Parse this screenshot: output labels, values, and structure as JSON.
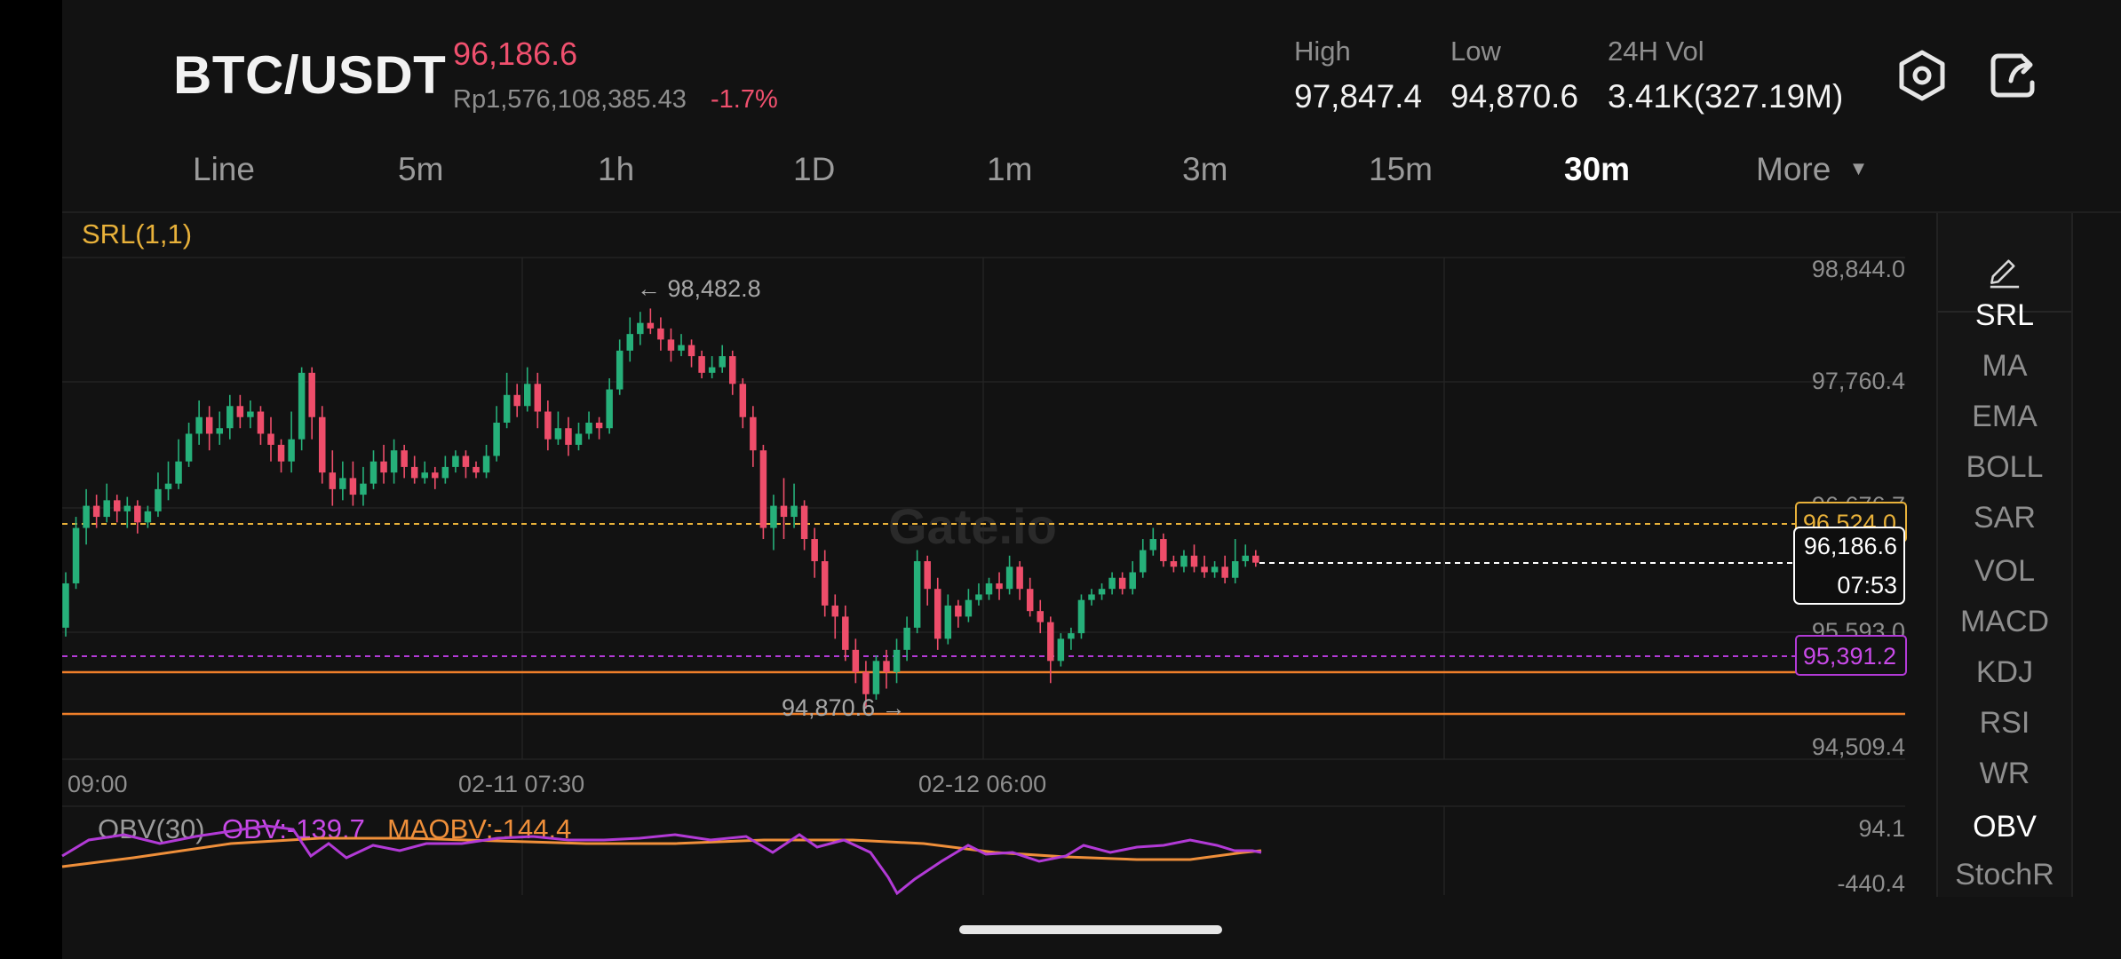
{
  "header": {
    "pair": "BTC/USDT",
    "last_price": "96,186.6",
    "local_price": "Rp1,576,108,385.43",
    "change": "-1.7%",
    "stats": [
      {
        "label": "High",
        "value": "97,847.4"
      },
      {
        "label": "Low",
        "value": "94,870.6"
      },
      {
        "label": "24H Vol",
        "value": "3.41K(327.19M)"
      }
    ],
    "icons": [
      "settings-hex-icon",
      "share-icon"
    ]
  },
  "tabs": [
    {
      "label": "Line",
      "active": false
    },
    {
      "label": "5m",
      "active": false
    },
    {
      "label": "1h",
      "active": false
    },
    {
      "label": "1D",
      "active": false
    },
    {
      "label": "1m",
      "active": false
    },
    {
      "label": "3m",
      "active": false
    },
    {
      "label": "15m",
      "active": false
    },
    {
      "label": "30m",
      "active": true
    },
    {
      "label": "More",
      "active": false
    }
  ],
  "chart": {
    "indicator_label": "SRL(1,1)",
    "watermark": "Gate.io",
    "y_ticks": [
      "98,844.0",
      "97,760.4",
      "96,676.7",
      "95,593.0",
      "94,509.4"
    ],
    "x_ticks": [
      "09:00",
      "02-11 07:30",
      "02-12 06:00"
    ],
    "max_marker": "← 98,482.8",
    "min_marker": "94,870.6 →",
    "current_price": "96,186.6",
    "countdown": "07:53",
    "srl_upper": "96,524.0",
    "srl_lower": "95,391.2",
    "colors": {
      "up": "#26b07a",
      "down": "#ee4d6a",
      "srl_upper": "#e8b13a",
      "srl_lower": "#b23ad6",
      "support": "#ef7f2a"
    }
  },
  "chart_data": {
    "type": "candlestick",
    "timeframe": "30m",
    "ylim": [
      94509.4,
      98844.0
    ],
    "x_ticks": [
      "09:00",
      "02-11 07:30",
      "02-12 06:00"
    ],
    "high_marker": 98482.8,
    "low_marker": 94870.6,
    "current": 96186.6,
    "srl": {
      "upper": 96524.0,
      "lower": 95391.2
    },
    "candles": [
      [
        95600,
        96000,
        95520,
        96100
      ],
      [
        96000,
        96500,
        95950,
        96600
      ],
      [
        96500,
        96700,
        96350,
        96850
      ],
      [
        96700,
        96600,
        96500,
        96800
      ],
      [
        96600,
        96750,
        96550,
        96900
      ],
      [
        96750,
        96650,
        96550,
        96800
      ],
      [
        96650,
        96700,
        96500,
        96780
      ],
      [
        96700,
        96550,
        96450,
        96750
      ],
      [
        96550,
        96650,
        96500,
        96700
      ],
      [
        96650,
        96850,
        96600,
        97000
      ],
      [
        96850,
        96900,
        96750,
        97100
      ],
      [
        96900,
        97100,
        96850,
        97300
      ],
      [
        97100,
        97350,
        97050,
        97450
      ],
      [
        97350,
        97500,
        97250,
        97650
      ],
      [
        97500,
        97350,
        97200,
        97600
      ],
      [
        97350,
        97400,
        97250,
        97550
      ],
      [
        97400,
        97600,
        97300,
        97700
      ],
      [
        97600,
        97500,
        97400,
        97700
      ],
      [
        97500,
        97550,
        97400,
        97650
      ],
      [
        97550,
        97350,
        97250,
        97600
      ],
      [
        97350,
        97250,
        97100,
        97500
      ],
      [
        97250,
        97100,
        97000,
        97300
      ],
      [
        97100,
        97300,
        97000,
        97550
      ],
      [
        97300,
        97900,
        97200,
        97950
      ],
      [
        97900,
        97500,
        97300,
        97950
      ],
      [
        97500,
        97000,
        96900,
        97600
      ],
      [
        97000,
        96850,
        96700,
        97200
      ],
      [
        96850,
        96950,
        96750,
        97100
      ],
      [
        96950,
        96800,
        96700,
        97100
      ],
      [
        96800,
        96900,
        96700,
        97050
      ],
      [
        96900,
        97100,
        96850,
        97200
      ],
      [
        97100,
        97000,
        96900,
        97250
      ],
      [
        97000,
        97200,
        96900,
        97300
      ],
      [
        97200,
        97050,
        96950,
        97250
      ],
      [
        97050,
        96950,
        96900,
        97150
      ],
      [
        96950,
        97000,
        96900,
        97100
      ],
      [
        97000,
        96950,
        96850,
        97050
      ],
      [
        96950,
        97050,
        96900,
        97150
      ],
      [
        97050,
        97150,
        97000,
        97200
      ],
      [
        97150,
        97050,
        96950,
        97200
      ],
      [
        97050,
        97000,
        96950,
        97100
      ],
      [
        97000,
        97150,
        96950,
        97250
      ],
      [
        97150,
        97450,
        97100,
        97600
      ],
      [
        97450,
        97700,
        97400,
        97900
      ],
      [
        97700,
        97600,
        97500,
        97800
      ],
      [
        97600,
        97800,
        97550,
        97950
      ],
      [
        97800,
        97550,
        97400,
        97900
      ],
      [
        97550,
        97300,
        97200,
        97650
      ],
      [
        97300,
        97400,
        97250,
        97550
      ],
      [
        97400,
        97250,
        97150,
        97500
      ],
      [
        97250,
        97350,
        97200,
        97450
      ],
      [
        97350,
        97450,
        97300,
        97550
      ],
      [
        97450,
        97400,
        97300,
        97500
      ],
      [
        97400,
        97750,
        97350,
        97850
      ],
      [
        97750,
        98100,
        97700,
        98200
      ],
      [
        98100,
        98250,
        98000,
        98400
      ],
      [
        98250,
        98350,
        98150,
        98450
      ],
      [
        98350,
        98300,
        98250,
        98480
      ],
      [
        98300,
        98200,
        98100,
        98400
      ],
      [
        98200,
        98100,
        98000,
        98300
      ],
      [
        98100,
        98150,
        98050,
        98250
      ],
      [
        98150,
        98050,
        97950,
        98200
      ],
      [
        98050,
        97900,
        97850,
        98100
      ],
      [
        97900,
        97950,
        97850,
        98050
      ],
      [
        97950,
        98050,
        97900,
        98150
      ],
      [
        98050,
        97800,
        97700,
        98100
      ],
      [
        97800,
        97500,
        97400,
        97850
      ],
      [
        97500,
        97200,
        97050,
        97600
      ],
      [
        97200,
        96500,
        96400,
        97250
      ],
      [
        96500,
        96700,
        96300,
        96800
      ],
      [
        96700,
        96600,
        96400,
        96950
      ],
      [
        96600,
        96700,
        96500,
        96900
      ],
      [
        96700,
        96400,
        96300,
        96750
      ],
      [
        96400,
        96200,
        96050,
        96500
      ],
      [
        96200,
        95800,
        95700,
        96300
      ],
      [
        95800,
        95700,
        95500,
        95900
      ],
      [
        95700,
        95400,
        95300,
        95800
      ],
      [
        95400,
        95200,
        95100,
        95500
      ],
      [
        95200,
        95000,
        94870,
        95300
      ],
      [
        95000,
        95300,
        94950,
        95350
      ],
      [
        95300,
        95200,
        95050,
        95400
      ],
      [
        95200,
        95400,
        95100,
        95500
      ],
      [
        95400,
        95600,
        95300,
        95700
      ],
      [
        95600,
        96200,
        95550,
        96300
      ],
      [
        96200,
        95950,
        95800,
        96250
      ],
      [
        95950,
        95500,
        95400,
        96050
      ],
      [
        95500,
        95800,
        95450,
        95900
      ],
      [
        95800,
        95700,
        95600,
        95850
      ],
      [
        95700,
        95850,
        95650,
        95950
      ],
      [
        95850,
        95900,
        95800,
        96000
      ],
      [
        95900,
        96000,
        95850,
        96050
      ],
      [
        96000,
        95950,
        95850,
        96100
      ],
      [
        95950,
        96150,
        95900,
        96250
      ],
      [
        96150,
        95950,
        95850,
        96200
      ],
      [
        95950,
        95750,
        95700,
        96050
      ],
      [
        95750,
        95650,
        95550,
        95850
      ],
      [
        95650,
        95300,
        95100,
        95700
      ],
      [
        95300,
        95500,
        95250,
        95550
      ],
      [
        95500,
        95550,
        95400,
        95600
      ],
      [
        95550,
        95850,
        95500,
        95900
      ],
      [
        95850,
        95900,
        95800,
        95950
      ],
      [
        95900,
        95950,
        95850,
        96000
      ],
      [
        95950,
        96050,
        95900,
        96100
      ],
      [
        96050,
        95950,
        95900,
        96100
      ],
      [
        95950,
        96100,
        95900,
        96200
      ],
      [
        96100,
        96300,
        96050,
        96400
      ],
      [
        96300,
        96400,
        96250,
        96500
      ],
      [
        96400,
        96200,
        96150,
        96450
      ],
      [
        96200,
        96150,
        96100,
        96250
      ],
      [
        96150,
        96250,
        96100,
        96300
      ],
      [
        96250,
        96150,
        96100,
        96350
      ],
      [
        96150,
        96100,
        96050,
        96250
      ],
      [
        96100,
        96150,
        96050,
        96200
      ],
      [
        96150,
        96050,
        96000,
        96250
      ],
      [
        96050,
        96200,
        96000,
        96400
      ],
      [
        96200,
        96250,
        96150,
        96350
      ],
      [
        96250,
        96186.6,
        96150,
        96300
      ]
    ],
    "obv": {
      "label": "OBV(30)",
      "obv_label": "OBV:-139.7",
      "maobv_label": "MAOBV:-144.4",
      "ylim": [
        -440.4,
        94.1
      ],
      "y_ticks": [
        "94.1",
        "-440.4"
      ]
    }
  },
  "right_panel": {
    "items": [
      {
        "label": "SRL",
        "active": true
      },
      {
        "label": "MA",
        "active": false
      },
      {
        "label": "EMA",
        "active": false
      },
      {
        "label": "BOLL",
        "active": false
      },
      {
        "label": "SAR",
        "active": false
      },
      {
        "label": "VOL",
        "active": false
      },
      {
        "label": "MACD",
        "active": false
      },
      {
        "label": "KDJ",
        "active": false
      },
      {
        "label": "RSI",
        "active": false
      },
      {
        "label": "WR",
        "active": false
      },
      {
        "label": "OBV",
        "active": true
      },
      {
        "label": "StochR",
        "active": false
      }
    ]
  }
}
